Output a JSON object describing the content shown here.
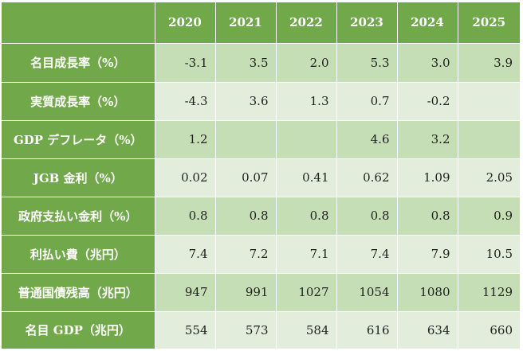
{
  "table": {
    "years": [
      "2020",
      "2021",
      "2022",
      "2023",
      "2024",
      "2025"
    ],
    "rows": [
      {
        "label": "名目成長率（%）",
        "values": [
          "-3.1",
          "3.5",
          "2.0",
          "5.3",
          "3.0",
          "3.9"
        ]
      },
      {
        "label": "実質成長率（%）",
        "values": [
          "-4.3",
          "3.6",
          "1.3",
          "0.7",
          "-0.2",
          ""
        ]
      },
      {
        "label": "GDP デフレータ（%）",
        "values": [
          "1.2",
          "",
          "",
          "4.6",
          "3.2",
          ""
        ]
      },
      {
        "label": "JGB 金利（%）",
        "values": [
          "0.02",
          "0.07",
          "0.41",
          "0.62",
          "1.09",
          "2.05"
        ]
      },
      {
        "label": "政府支払い金利（%）",
        "values": [
          "0.8",
          "0.8",
          "0.8",
          "0.8",
          "0.8",
          "0.9"
        ]
      },
      {
        "label": "利払い費（兆円）",
        "values": [
          "7.4",
          "7.2",
          "7.1",
          "7.4",
          "7.9",
          "10.5"
        ]
      },
      {
        "label": "普通国債残高（兆円）",
        "values": [
          "947",
          "991",
          "1027",
          "1054",
          "1080",
          "1129"
        ]
      },
      {
        "label": "名目 GDP（兆円）",
        "values": [
          "554",
          "573",
          "584",
          "616",
          "634",
          "660"
        ]
      }
    ]
  },
  "colors": {
    "header_green": "#71a94a",
    "band_dark": "#c6deb6",
    "band_light": "#e2eedb"
  }
}
